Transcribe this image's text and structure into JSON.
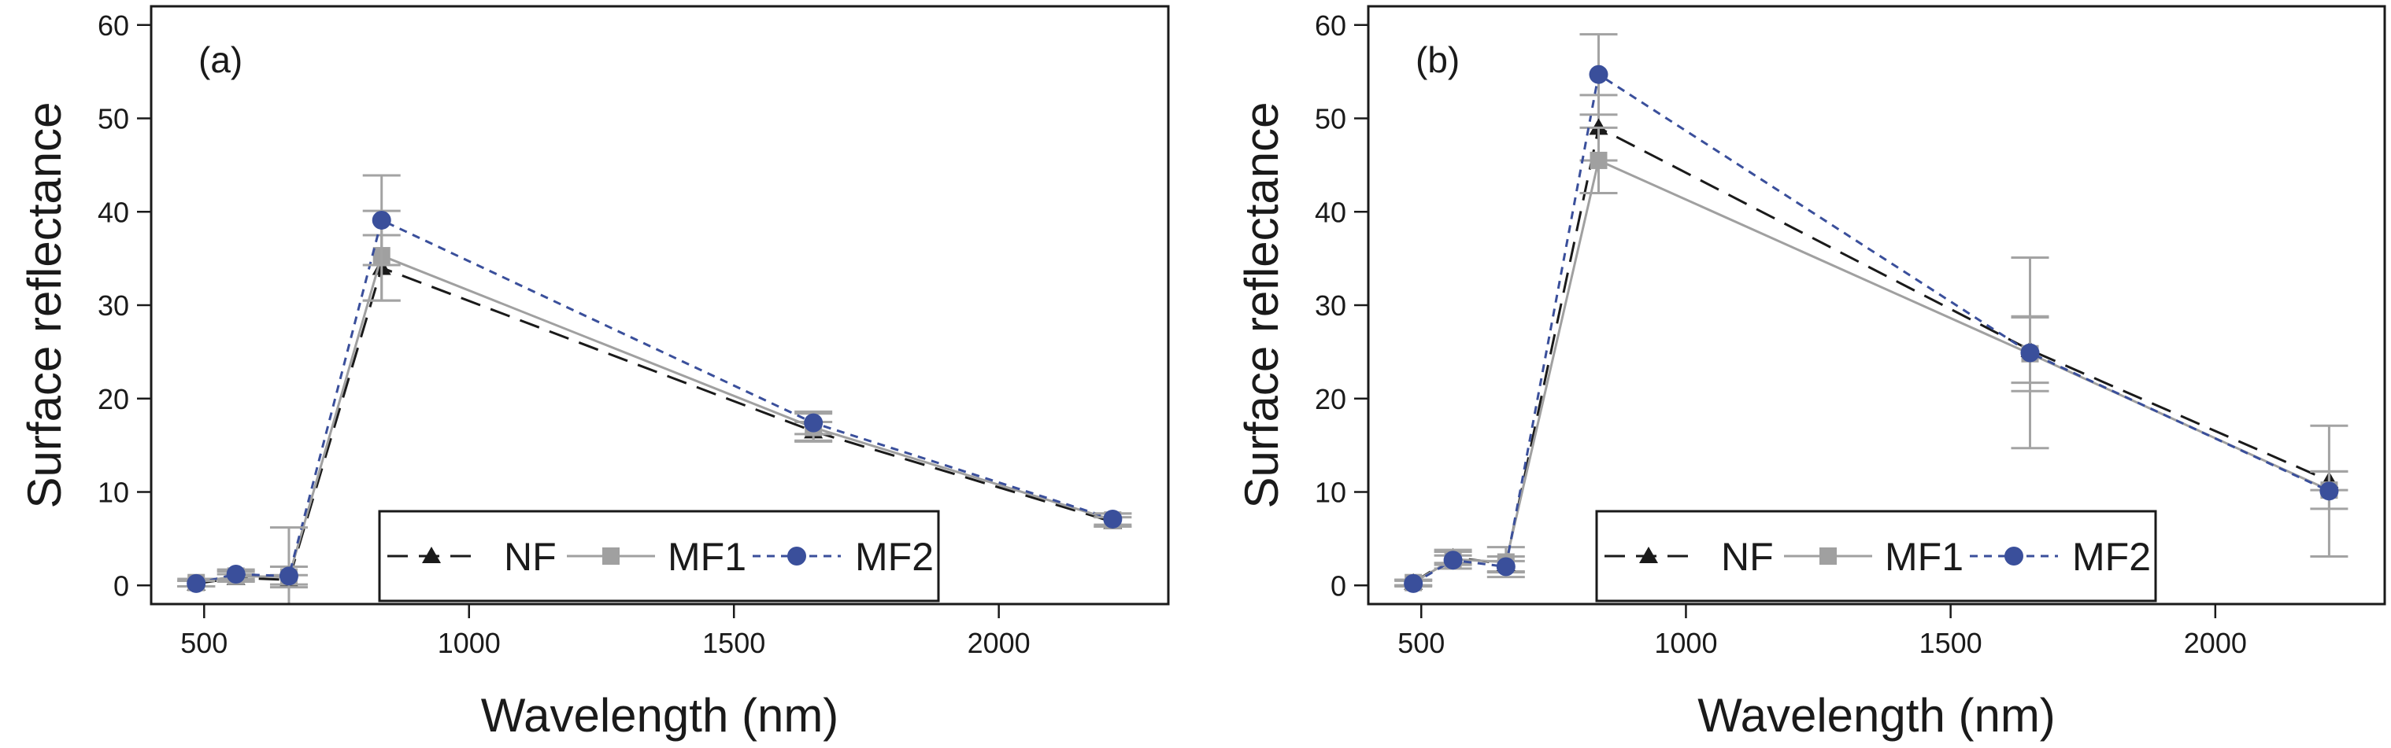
{
  "chart_data": [
    {
      "type": "line",
      "panel_label": "(a)",
      "xlabel": "Wavelength (nm)",
      "ylabel": "Surface reflectance",
      "xlim": [
        400,
        2320
      ],
      "ylim": [
        -2,
        62
      ],
      "xticks": [
        500,
        1000,
        1500,
        2000
      ],
      "yticks": [
        0,
        10,
        20,
        30,
        40,
        50,
        60
      ],
      "x": [
        485,
        560,
        660,
        835,
        1650,
        2215
      ],
      "series": [
        {
          "name": "NF",
          "marker": "triangle",
          "dash": "long",
          "color": "#1a1a1a",
          "values": [
            0.2,
            0.8,
            0.6,
            34.0,
            16.5,
            6.8
          ],
          "err": [
            0.3,
            0.4,
            0.5,
            3.5,
            1.0,
            0.5
          ]
        },
        {
          "name": "MF1",
          "marker": "square",
          "dash": "solid",
          "color": "#a0a0a0",
          "values": [
            0.3,
            1.0,
            0.9,
            35.3,
            16.9,
            7.0
          ],
          "err": [
            0.4,
            0.5,
            1.1,
            4.8,
            1.5,
            0.7
          ]
        },
        {
          "name": "MF2",
          "marker": "circle",
          "dash": "short",
          "color": "#3a4f9b",
          "values": [
            0.2,
            1.2,
            1.0,
            39.1,
            17.4,
            7.1
          ],
          "err": [
            0.3,
            0.5,
            5.2,
            4.8,
            1.2,
            0.6
          ]
        }
      ],
      "legend": "bottom-center"
    },
    {
      "type": "line",
      "panel_label": "(b)",
      "xlabel": "Wavelength (nm)",
      "ylabel": "Surface reflectance",
      "xlim": [
        400,
        2320
      ],
      "ylim": [
        -2,
        62
      ],
      "xticks": [
        500,
        1000,
        1500,
        2000
      ],
      "yticks": [
        0,
        10,
        20,
        30,
        40,
        50,
        60
      ],
      "x": [
        485,
        560,
        660,
        835,
        1650,
        2215
      ],
      "series": [
        {
          "name": "NF",
          "marker": "triangle",
          "dash": "long",
          "color": "#1a1a1a",
          "values": [
            0.3,
            3.0,
            2.3,
            49.0,
            25.2,
            11.2
          ],
          "err": [
            0.3,
            0.6,
            0.8,
            3.5,
            3.5,
            1.0
          ]
        },
        {
          "name": "MF1",
          "marker": "square",
          "dash": "solid",
          "color": "#a0a0a0",
          "values": [
            0.3,
            2.8,
            2.5,
            45.5,
            24.8,
            10.2
          ],
          "err": [
            0.3,
            1.0,
            1.6,
            3.5,
            4.0,
            2.0
          ]
        },
        {
          "name": "MF2",
          "marker": "circle",
          "dash": "short",
          "color": "#3a4f9b",
          "values": [
            0.2,
            2.7,
            2.0,
            54.7,
            24.9,
            10.1
          ],
          "err": [
            0.3,
            0.5,
            0.6,
            4.3,
            10.2,
            7.0
          ]
        }
      ],
      "legend": "bottom-center"
    }
  ]
}
